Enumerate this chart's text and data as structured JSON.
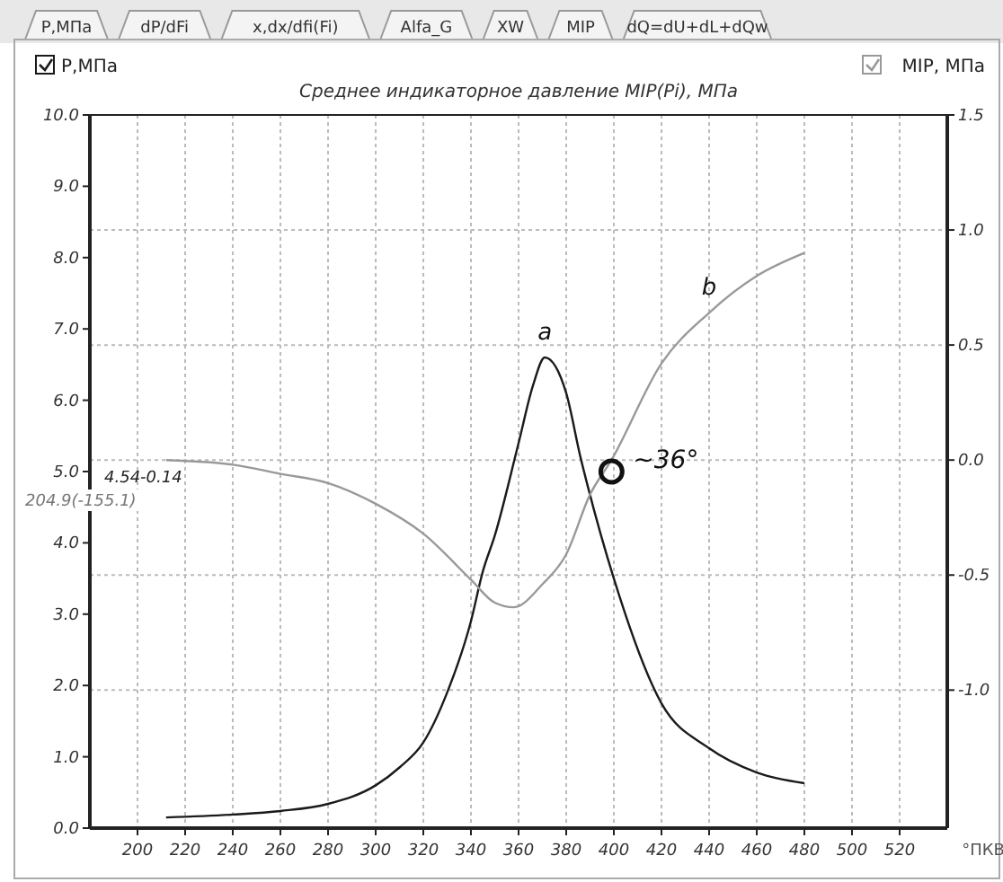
{
  "chart_data": {
    "type": "line",
    "title": "Среднее индикаторное давление MIP(Pi), МПа",
    "xlabel": "°ПКВ",
    "xlim": [
      180,
      540
    ],
    "xticks": [
      200,
      220,
      240,
      260,
      280,
      300,
      320,
      340,
      360,
      380,
      400,
      420,
      440,
      460,
      480,
      500,
      520
    ],
    "ylim": [
      0,
      10
    ],
    "yticks": [
      {
        "value": 0,
        "label": "0.0"
      },
      {
        "value": 1,
        "label": "1.0"
      },
      {
        "value": 2,
        "label": "2.0"
      },
      {
        "value": 3,
        "label": "3.0"
      },
      {
        "value": 4,
        "label": "4.0"
      },
      {
        "value": 5,
        "label": "5.0"
      },
      {
        "value": 6,
        "label": "6.0"
      },
      {
        "value": 7,
        "label": "7.0"
      },
      {
        "value": 8,
        "label": "8.0"
      },
      {
        "value": 9,
        "label": "9.0"
      },
      {
        "value": 10,
        "label": "10.0"
      }
    ],
    "y2lim": [
      -1.6,
      1.5
    ],
    "y2ticks": [
      {
        "value": -1,
        "label": "-1.0"
      },
      {
        "value": -0.5,
        "label": "-0.5"
      },
      {
        "value": 0,
        "label": "0.0"
      },
      {
        "value": 0.5,
        "label": "0.5"
      },
      {
        "value": 1,
        "label": "1.0"
      },
      {
        "value": 1.5,
        "label": "1.5"
      }
    ],
    "grid": true,
    "legend": "top",
    "line_style": "solid",
    "series": [
      {
        "name": "P,МПа",
        "color": "#1a1a1a",
        "x": [
          212,
          240,
          260,
          280,
          300,
          310,
          320,
          330,
          340,
          345,
          350,
          360,
          366,
          371,
          380,
          386,
          389,
          400,
          420,
          440,
          460,
          480
        ],
        "values": [
          0.15,
          0.19,
          0.24,
          0.34,
          0.6,
          0.85,
          1.2,
          1.9,
          2.9,
          3.6,
          4.1,
          5.4,
          6.2,
          6.6,
          6.1,
          5.2,
          4.8,
          3.5,
          1.75,
          1.12,
          0.78,
          0.63
        ]
      },
      {
        "name": "MIP, МПа",
        "color": "#999999",
        "axis": "y2",
        "x": [
          212,
          240,
          260,
          280,
          300,
          320,
          340,
          350,
          358,
          370,
          380,
          390,
          399,
          420,
          440,
          460,
          480
        ],
        "values": [
          0,
          -0.02,
          -0.06,
          -0.1,
          -0.19,
          -0.32,
          -0.52,
          -0.62,
          -0.64,
          -0.54,
          -0.41,
          -0.15,
          0,
          0.42,
          0.64,
          0.8,
          0.9
        ]
      }
    ],
    "annotations": [
      "P,МПа",
      "dP/dFi",
      "x,dx/dfi(Fi)",
      "Alfa_G",
      "XW",
      "MIP",
      "dQ=dU+dL+dQw",
      "4.54-0.14",
      "204.9(-155.1)",
      "a",
      "b",
      {
        "text": "~36°",
        "x": 399,
        "y": 5.0
      }
    ]
  }
}
